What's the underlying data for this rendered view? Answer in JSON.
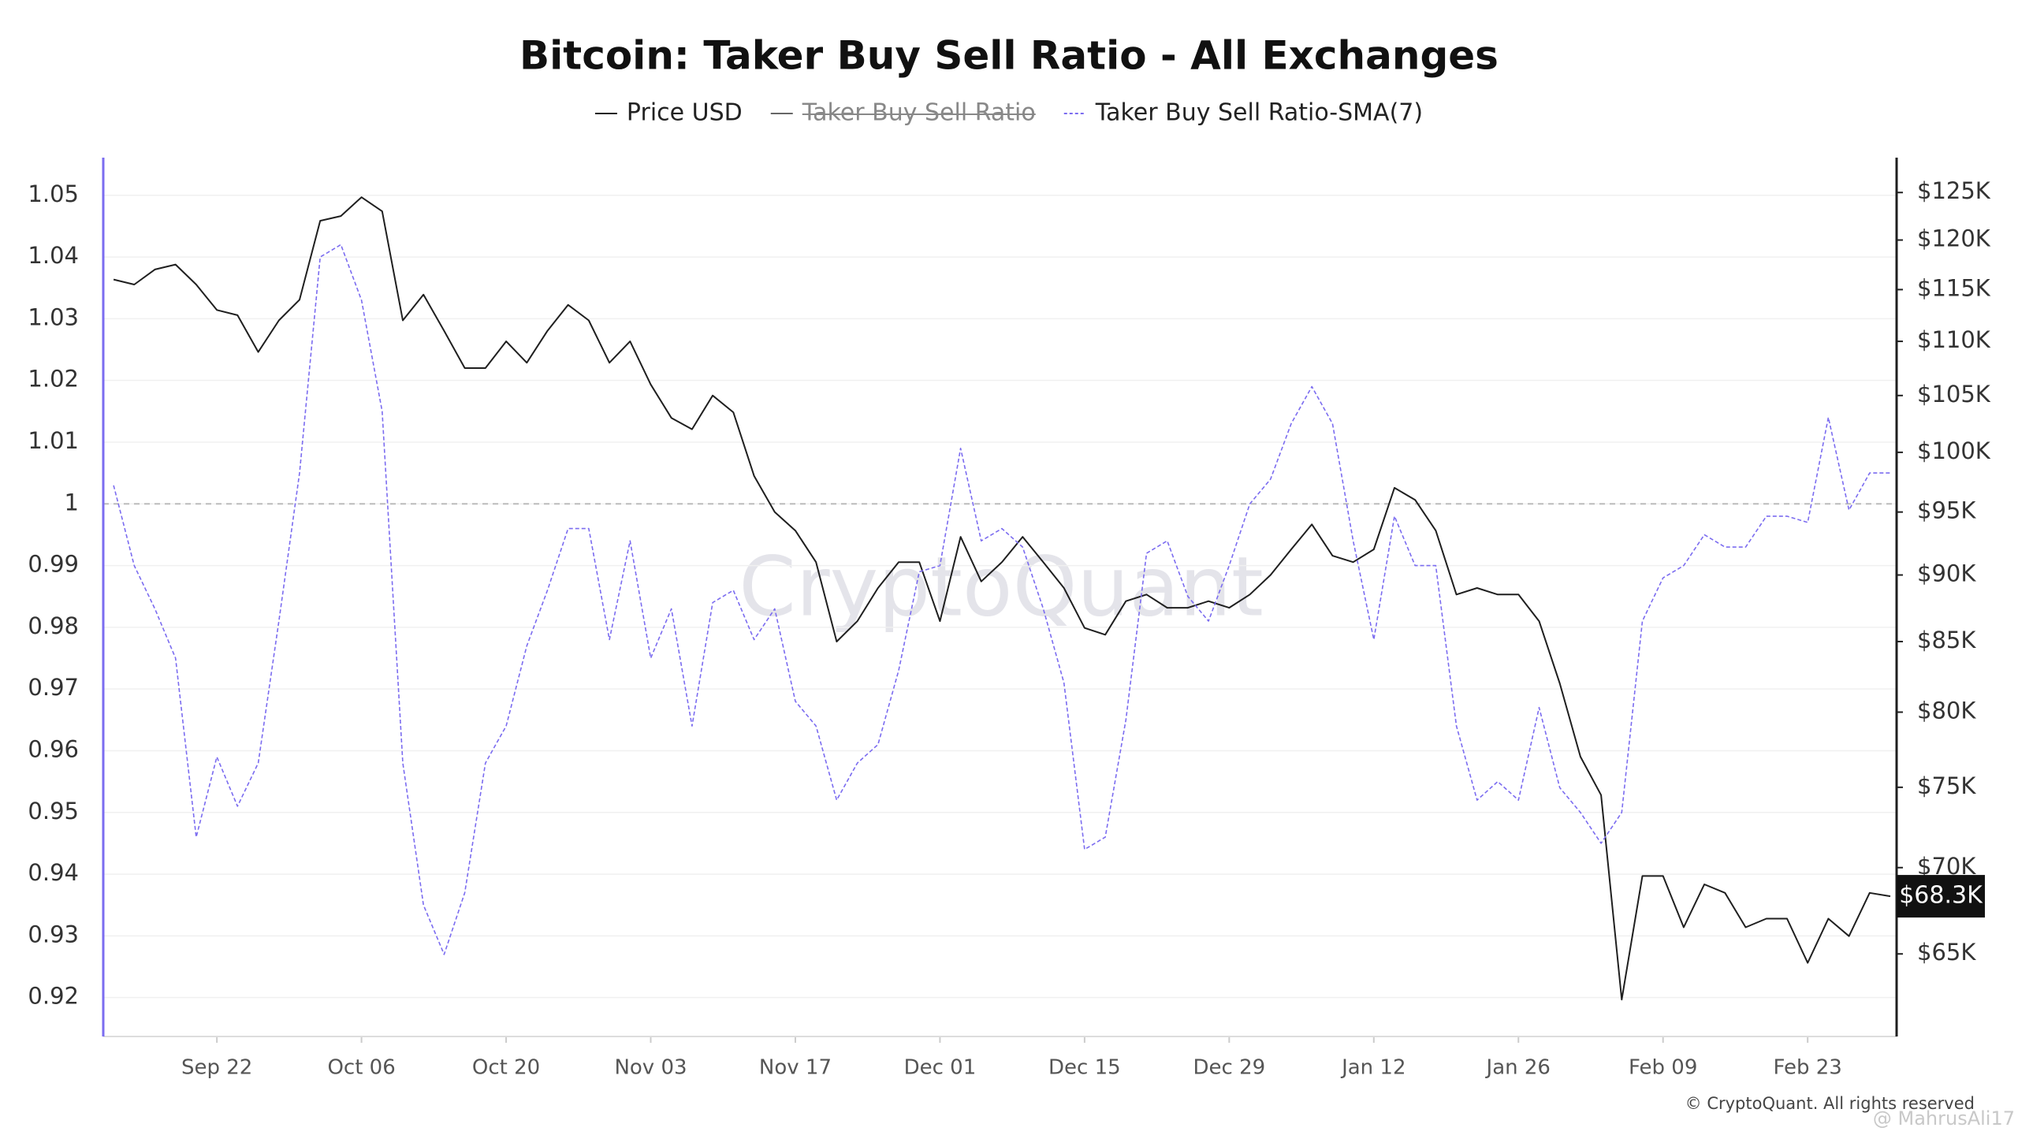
{
  "chart_data": {
    "type": "line",
    "title": "Bitcoin: Taker Buy Sell Ratio - All Exchanges",
    "categories": [
      null,
      null,
      null,
      null,
      null,
      "Sep 22",
      null,
      null,
      null,
      null,
      null,
      null,
      "Oct 06",
      null,
      null,
      null,
      null,
      null,
      null,
      "Oct 20",
      null,
      null,
      null,
      null,
      null,
      null,
      "Nov 03",
      null,
      null,
      null,
      null,
      null,
      null,
      "Nov 17",
      null,
      null,
      null,
      null,
      null,
      null,
      "Dec 01",
      null,
      null,
      null,
      null,
      null,
      null,
      "Dec 15",
      null,
      null,
      null,
      null,
      null,
      null,
      "Dec 29",
      null,
      null,
      null,
      null,
      null,
      null,
      "Jan 12",
      null,
      null,
      null,
      null,
      null,
      null,
      "Jan 26",
      null,
      null,
      null,
      null,
      null,
      null,
      "Feb 09",
      null,
      null,
      null,
      null,
      null,
      null,
      "Feb 23",
      null,
      null,
      null,
      null
    ],
    "series": [
      {
        "name": "Price USD",
        "color": "#1f1f1f",
        "axis": "y2",
        "values": [
          116000,
          115500,
          117000,
          117500,
          115500,
          113000,
          112500,
          109000,
          112000,
          114000,
          122000,
          122500,
          124500,
          123000,
          112000,
          114500,
          111000,
          107500,
          107500,
          110000,
          108000,
          111000,
          113500,
          112000,
          108000,
          110000,
          106000,
          103000,
          102000,
          105000,
          103500,
          98000,
          95000,
          93500,
          91000,
          85000,
          86500,
          89000,
          91000,
          91000,
          86500,
          93000,
          89500,
          91000,
          93000,
          91000,
          89000,
          86000,
          85500,
          88000,
          88500,
          87500,
          87500,
          88000,
          87500,
          88500,
          90000,
          92000,
          94000,
          91500,
          91000,
          92000,
          97000,
          96000,
          93500,
          88500,
          89000,
          88500,
          88500,
          86500,
          82000,
          77000,
          74500,
          62500,
          69500,
          69500,
          66500,
          69000,
          68500,
          66500,
          67000,
          67000,
          64500,
          67000,
          66000,
          68500,
          68300
        ],
        "end_label": {
          "value": 68300,
          "label": "$68.3K"
        }
      },
      {
        "name": "Taker Buy Sell Ratio",
        "color": "#555555",
        "visible": false
      },
      {
        "name": "Taker Buy Sell Ratio-SMA(7)",
        "color": "#7b6cf0",
        "dashed": true,
        "values": [
          1.003,
          0.99,
          0.983,
          0.975,
          0.946,
          0.959,
          0.951,
          0.958,
          0.981,
          1.005,
          1.04,
          1.042,
          1.033,
          1.015,
          0.958,
          0.935,
          0.927,
          0.937,
          0.958,
          0.964,
          0.977,
          0.986,
          0.996,
          0.996,
          0.978,
          0.994,
          0.975,
          0.983,
          0.964,
          0.984,
          0.986,
          0.978,
          0.983,
          0.968,
          0.964,
          0.952,
          0.958,
          0.961,
          0.973,
          0.989,
          0.99,
          1.009,
          0.994,
          0.996,
          0.993,
          0.983,
          0.971,
          0.944,
          0.946,
          0.965,
          0.992,
          0.994,
          0.985,
          0.981,
          0.99,
          1.0,
          1.004,
          1.013,
          1.019,
          1.013,
          0.994,
          0.978,
          0.998,
          0.99,
          0.99,
          0.964,
          0.952,
          0.955,
          0.952,
          0.967,
          0.954,
          0.95,
          0.945,
          0.95,
          0.981,
          0.988,
          0.99,
          0.995,
          0.993,
          0.993,
          0.998,
          0.998,
          0.997,
          1.014,
          0.999,
          1.005,
          1.005
        ]
      }
    ],
    "ylim": [
      0.9137,
      1.0561
    ],
    "yticks": [
      0.92,
      0.93,
      0.94,
      0.95,
      0.96,
      0.97,
      0.98,
      0.99,
      1,
      1.01,
      1.02,
      1.03,
      1.04,
      1.05
    ],
    "y2lim": [
      60550,
      128800
    ],
    "y2log": true,
    "y2ticks": [
      {
        "value": 65000,
        "label": "$65K"
      },
      {
        "value": 70000,
        "label": "$70K"
      },
      {
        "value": 75000,
        "label": "$75K"
      },
      {
        "value": 80000,
        "label": "$80K"
      },
      {
        "value": 85000,
        "label": "$85K"
      },
      {
        "value": 90000,
        "label": "$90K"
      },
      {
        "value": 95000,
        "label": "$95K"
      },
      {
        "value": 100000,
        "label": "$100K"
      },
      {
        "value": 105000,
        "label": "$105K"
      },
      {
        "value": 110000,
        "label": "$110K"
      },
      {
        "value": 115000,
        "label": "$115K"
      },
      {
        "value": 120000,
        "label": "$120K"
      },
      {
        "value": 125000,
        "label": "$125K"
      }
    ],
    "reference_line": 1,
    "grid": true,
    "watermark": "CryptoQuant",
    "copyright": "© CryptoQuant. All rights reserved",
    "credit": "@ MahrusAli17"
  }
}
